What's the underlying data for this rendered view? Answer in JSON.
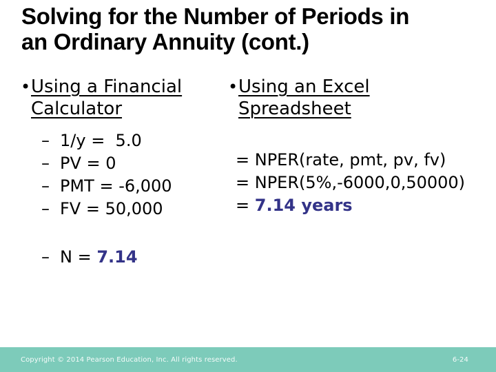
{
  "slide": {
    "title_line1": "Solving for the Number of Periods in",
    "title_line2": "an Ordinary Annuity (cont.)"
  },
  "glyphs": {
    "bullet": "•",
    "dash": "–"
  },
  "left_column": {
    "heading": "Using a Financial Calculator",
    "items": [
      "1/y =  5.0",
      "PV = 0",
      "PMT = -6,000",
      "FV = 50,000"
    ],
    "result_label": "N = ",
    "result_value": "7.14"
  },
  "right_column": {
    "heading": "Using an Excel Spreadsheet",
    "equations": [
      "= NPER(rate, pmt, pv, fv)",
      "= NPER(5%,-6000,0,50000)"
    ],
    "result_prefix": "= ",
    "result_value": "7.14 years"
  },
  "footer": {
    "copyright": "Copyright © 2014 Pearson Education, Inc. All rights reserved.",
    "page_number": "6-24"
  },
  "colors": {
    "accent_navy": "#333388",
    "footer_teal": "#7DCBBA",
    "title_black": "#000000"
  }
}
